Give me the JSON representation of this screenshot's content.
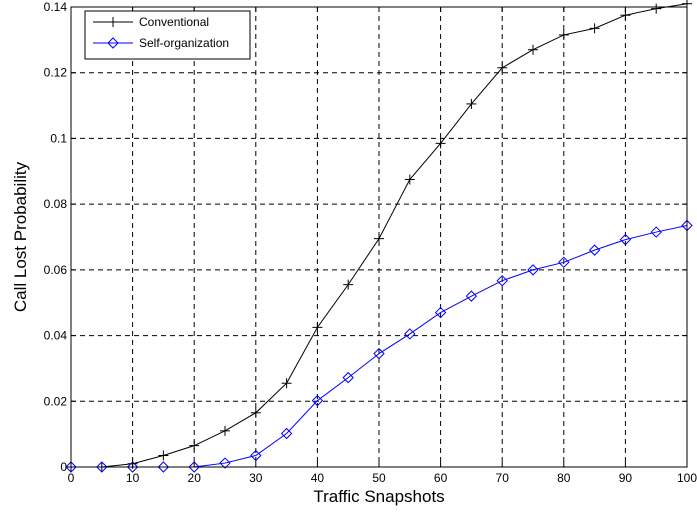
{
  "chart_data": {
    "type": "line",
    "xlabel": "Traffic Snapshots",
    "ylabel": "Call Lost Probability",
    "xlim": [
      0,
      100
    ],
    "ylim": [
      0,
      0.14
    ],
    "xticks": [
      "0",
      "10",
      "20",
      "30",
      "40",
      "50",
      "60",
      "70",
      "80",
      "90",
      "100"
    ],
    "yticks": [
      "0",
      "0.02",
      "0.04",
      "0.06",
      "0.08",
      "0.1",
      "0.12",
      "0.14"
    ],
    "grid": true,
    "legend_position": "top-left",
    "x": [
      0,
      5,
      10,
      15,
      20,
      25,
      30,
      35,
      40,
      45,
      50,
      55,
      60,
      65,
      70,
      75,
      80,
      85,
      90,
      95,
      100
    ],
    "series": [
      {
        "name": "Conventional",
        "color": "#000000",
        "marker": "plus",
        "values": [
          0,
          0,
          0.001,
          0.0035,
          0.0065,
          0.011,
          0.0165,
          0.0255,
          0.0425,
          0.0555,
          0.0695,
          0.0875,
          0.0985,
          0.1105,
          0.1215,
          0.127,
          0.1315,
          0.1335,
          0.1375,
          0.1395,
          0.141
        ]
      },
      {
        "name": "Self-organization",
        "color": "#0000ff",
        "marker": "diamond",
        "values": [
          0,
          0,
          0,
          0,
          0,
          0.0012,
          0.0035,
          0.0102,
          0.0202,
          0.0272,
          0.0345,
          0.0405,
          0.047,
          0.052,
          0.0567,
          0.06,
          0.0623,
          0.066,
          0.0692,
          0.0715,
          0.0735
        ]
      }
    ]
  }
}
